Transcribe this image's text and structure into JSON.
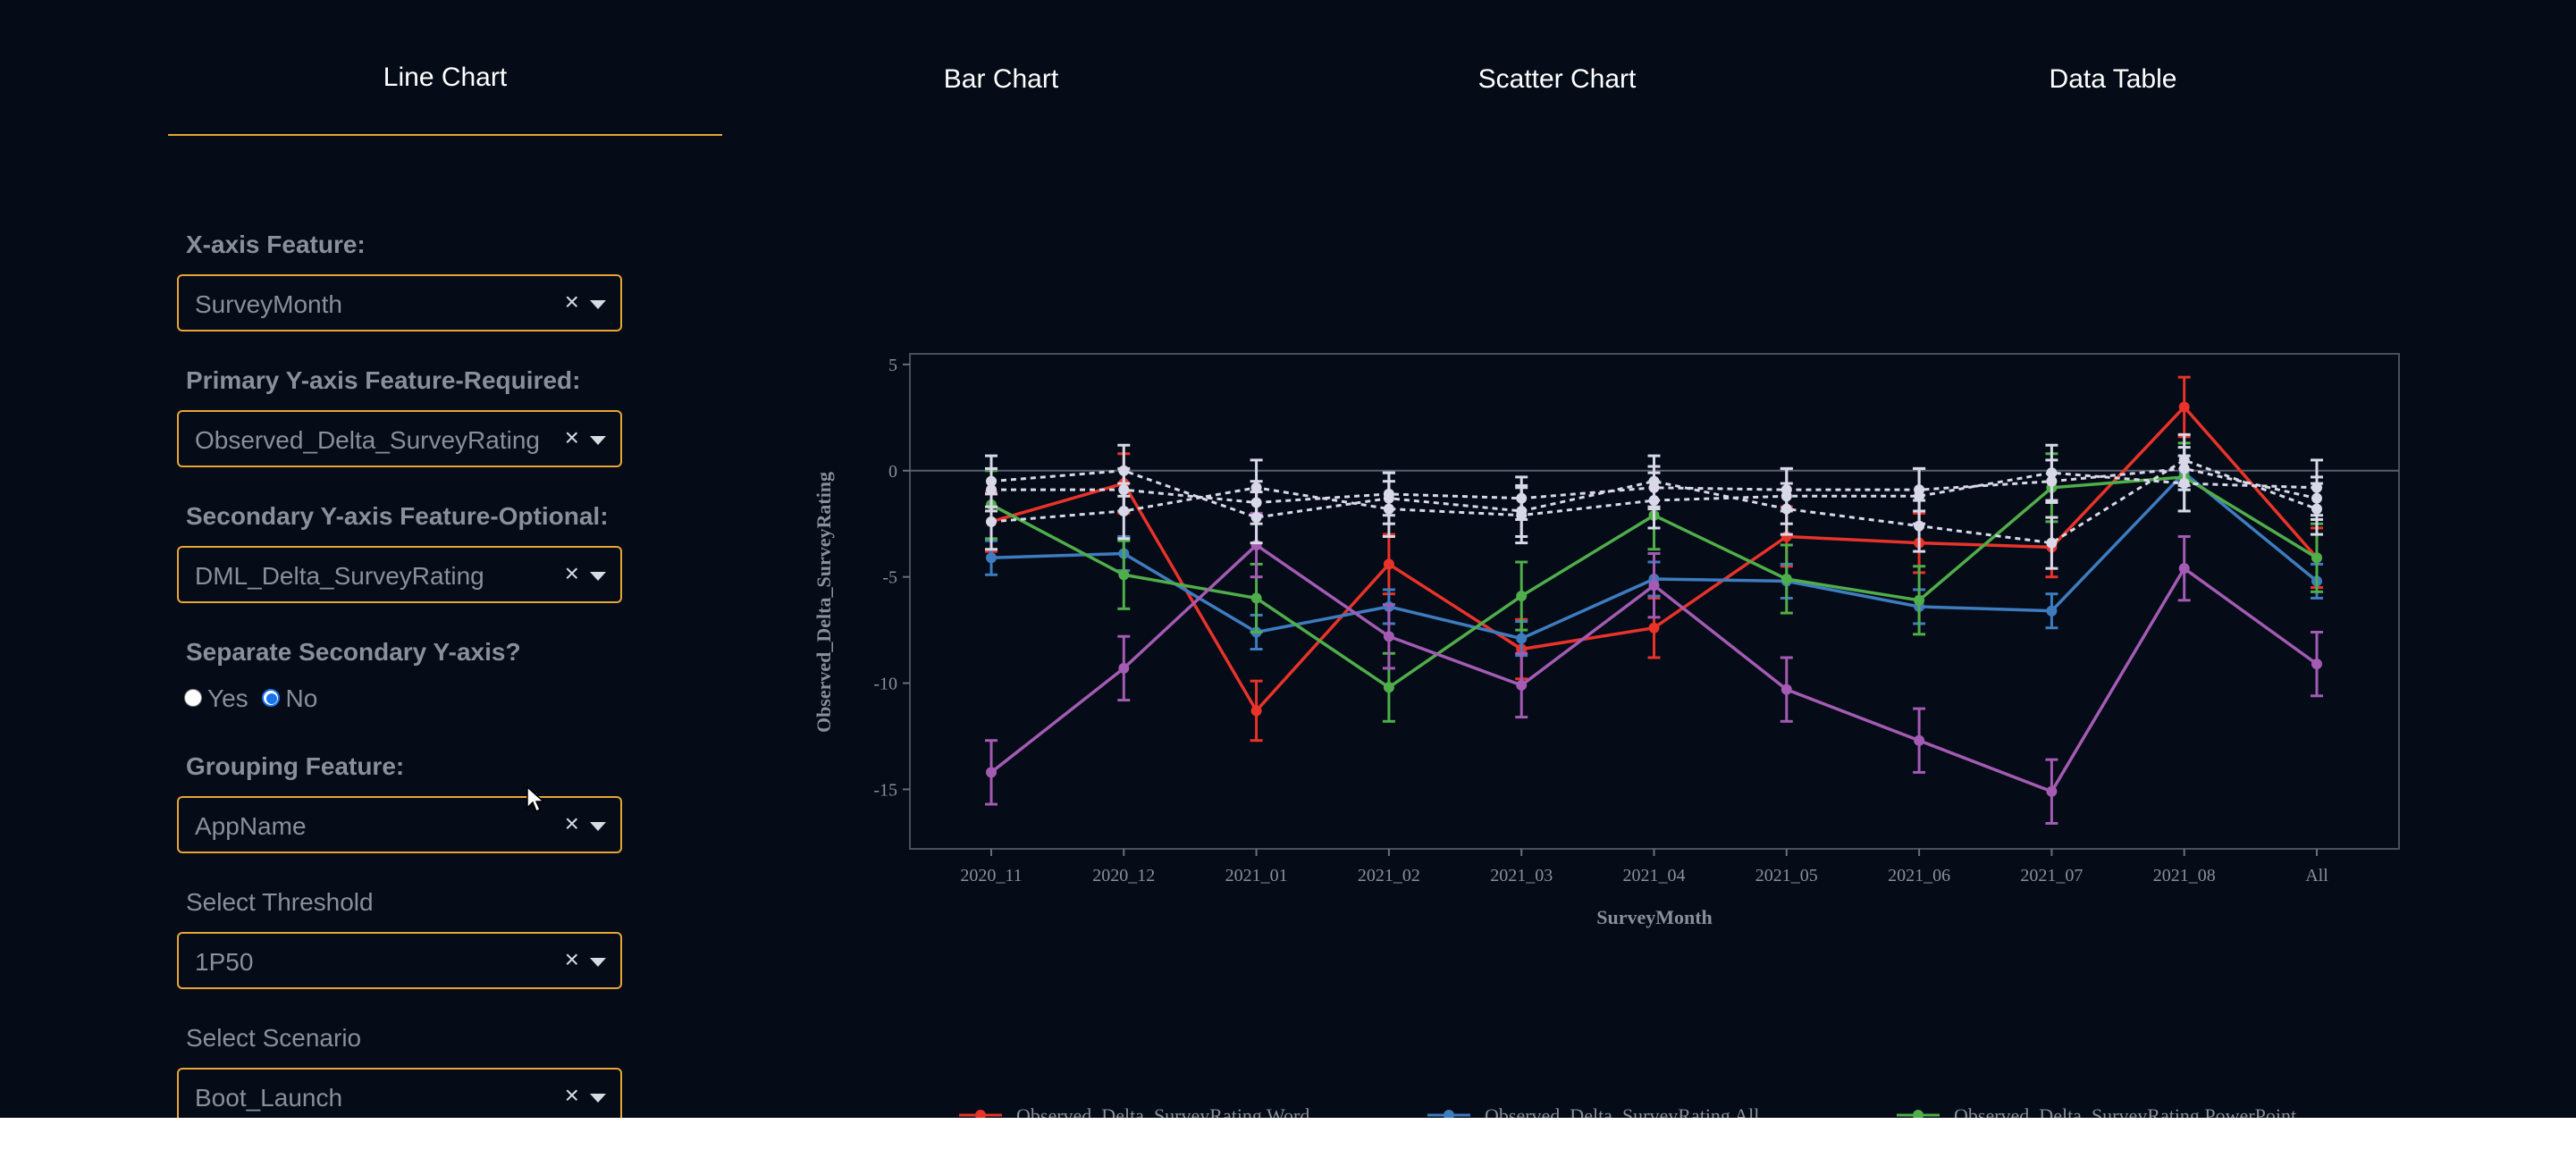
{
  "tabs": [
    {
      "label": "Line Chart",
      "active": true
    },
    {
      "label": "Bar Chart",
      "active": false
    },
    {
      "label": "Scatter Chart",
      "active": false
    },
    {
      "label": "Data Table",
      "active": false
    }
  ],
  "form": {
    "x_axis": {
      "label": "X-axis Feature:",
      "value": "SurveyMonth"
    },
    "primary_y": {
      "label": "Primary Y-axis Feature-Required:",
      "value": "Observed_Delta_SurveyRating"
    },
    "secondary_y": {
      "label": "Secondary Y-axis Feature-Optional:",
      "value": "DML_Delta_SurveyRating"
    },
    "separate_axis": {
      "label": "Separate Secondary Y-axis?",
      "options": [
        "Yes",
        "No"
      ],
      "selected": "No"
    },
    "grouping": {
      "label": "Grouping Feature:",
      "value": "AppName"
    },
    "threshold": {
      "label": "Select Threshold",
      "value": "1P50"
    },
    "scenario": {
      "label": "Select Scenario",
      "value": "Boot_Launch"
    },
    "clear_symbol": "×"
  },
  "chart_data": {
    "type": "line",
    "xlabel": "SurveyMonth",
    "ylabel": "Observed_Delta_SurveyRating",
    "ylim": [
      -17.8,
      5.5
    ],
    "yticks": [
      5,
      0,
      -5,
      -10,
      -15
    ],
    "categories": [
      "2020_11",
      "2020_12",
      "2021_01",
      "2021_02",
      "2021_03",
      "2021_04",
      "2021_05",
      "2021_06",
      "2021_07",
      "2021_08",
      "All"
    ],
    "series": [
      {
        "name": "Observed_Delta_SurveyRating Word",
        "color": "#e8332a",
        "values": [
          -2.4,
          -0.6,
          -11.3,
          -4.4,
          -8.4,
          -7.4,
          -3.1,
          -3.4,
          -3.6,
          3.0,
          -4.1
        ],
        "err": 1.4
      },
      {
        "name": "Observed_Delta_SurveyRating All",
        "color": "#3e7cc0",
        "values": [
          -4.1,
          -3.9,
          -7.6,
          -6.4,
          -7.9,
          -5.1,
          -5.2,
          -6.4,
          -6.6,
          -0.1,
          -5.2
        ],
        "err": 0.8
      },
      {
        "name": "Observed_Delta_SurveyRating PowerPoint",
        "color": "#4fae4a",
        "values": [
          -1.6,
          -4.9,
          -6.0,
          -10.2,
          -5.9,
          -2.1,
          -5.1,
          -6.1,
          -0.8,
          -0.3,
          -4.1
        ],
        "err": 1.6
      },
      {
        "name": "",
        "color": "#a35bb3",
        "values": [
          -14.2,
          -9.3,
          -3.5,
          -7.8,
          -10.1,
          -5.4,
          -10.3,
          -12.7,
          -15.1,
          -4.6,
          -9.1
        ],
        "err": 1.5
      },
      {
        "name": "",
        "color": "#d8d8e8",
        "dashed": true,
        "values": [
          -0.5,
          0.0,
          -2.2,
          -1.3,
          -1.9,
          -0.5,
          -1.8,
          -2.6,
          -3.4,
          0.5,
          -1.8
        ],
        "err": 1.2
      },
      {
        "name": "",
        "color": "#d8d8e8",
        "dashed": true,
        "values": [
          -0.9,
          -0.9,
          -1.5,
          -1.1,
          -1.3,
          -0.8,
          -0.9,
          -0.9,
          -0.5,
          0.1,
          -1.3
        ],
        "err": 1.0
      },
      {
        "name": "",
        "color": "#d8d8e8",
        "dashed": true,
        "values": [
          -2.4,
          -1.9,
          -0.8,
          -1.8,
          -2.1,
          -1.4,
          -1.2,
          -1.2,
          -0.1,
          -0.6,
          -0.8
        ],
        "err": 1.3
      }
    ],
    "legend_placement": "bottom",
    "zero_line": true
  }
}
